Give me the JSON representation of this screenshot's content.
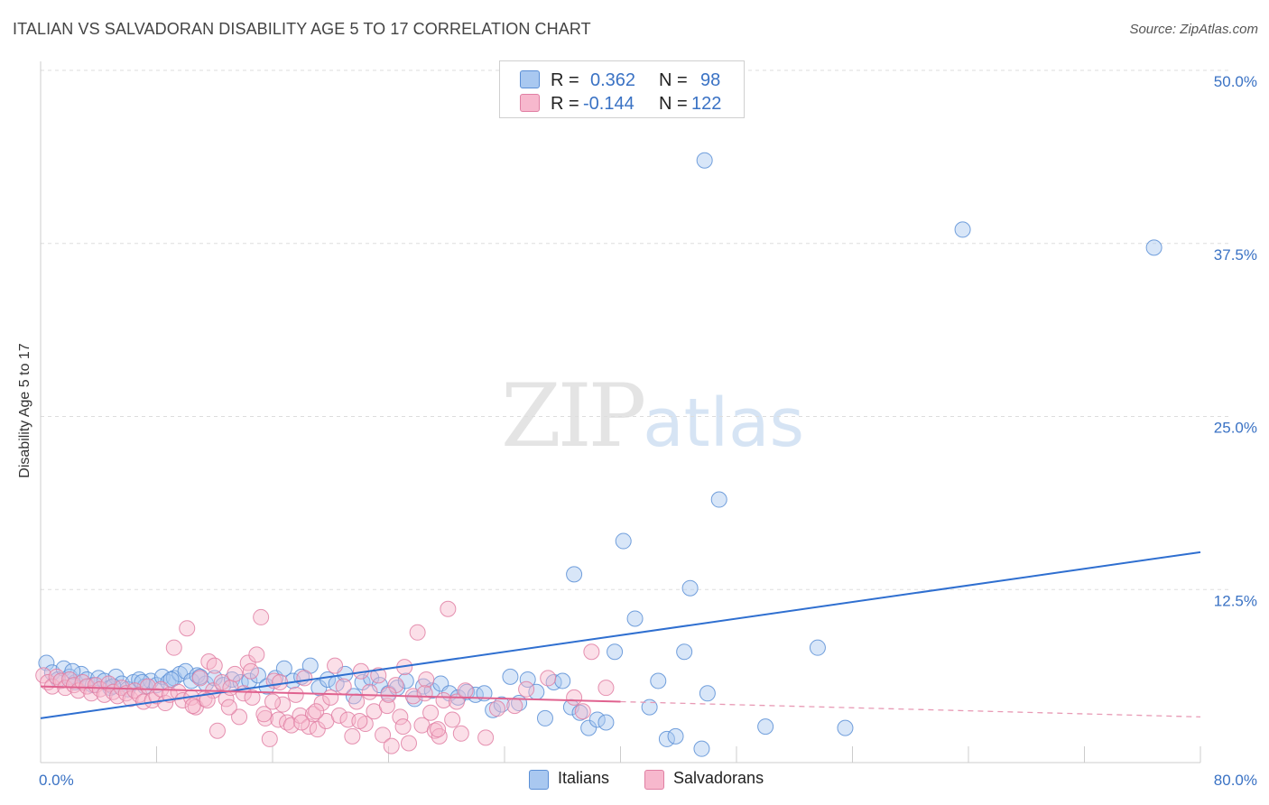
{
  "title": "ITALIAN VS SALVADORAN DISABILITY AGE 5 TO 17 CORRELATION CHART",
  "source": "Source: ZipAtlas.com",
  "watermark": {
    "zip": "ZIP",
    "atlas": "atlas"
  },
  "legend": {
    "rows": [
      {
        "r_label": "R =",
        "r_value": "0.362",
        "n_label": "N =",
        "n_value": "98",
        "color": "#a9c8f0",
        "border": "#5b8fd6"
      },
      {
        "r_label": "R =",
        "r_value": "-0.144",
        "n_label": "N =",
        "n_value": "122",
        "color": "#f7b8cd",
        "border": "#e07fa3"
      }
    ]
  },
  "bottom_legend": [
    {
      "label": "Italians",
      "color": "#a9c8f0",
      "border": "#5b8fd6"
    },
    {
      "label": "Salvadorans",
      "color": "#f7b8cd",
      "border": "#e07fa3"
    }
  ],
  "chart_data": {
    "type": "scatter",
    "title": "ITALIAN VS SALVADORAN DISABILITY AGE 5 TO 17 CORRELATION CHART",
    "xlabel": "",
    "ylabel": "Disability Age 5 to 17",
    "xlim": [
      0,
      80
    ],
    "ylim": [
      0,
      50
    ],
    "x_tick_labels": [
      {
        "value": 0,
        "label": "0.0%"
      },
      {
        "value": 80,
        "label": "80.0%"
      }
    ],
    "y_tick_labels": [
      {
        "value": 12.5,
        "label": "12.5%"
      },
      {
        "value": 25,
        "label": "25.0%"
      },
      {
        "value": 37.5,
        "label": "37.5%"
      },
      {
        "value": 50,
        "label": "50.0%"
      }
    ],
    "grid": true,
    "legend_placement": "top-center",
    "series": [
      {
        "name": "Italians",
        "color": "#5b8fd6",
        "fill": "#a9c8f0",
        "trend": {
          "x": [
            0,
            80
          ],
          "y": [
            3.2,
            15.2
          ]
        },
        "points": [
          [
            0.4,
            7.2
          ],
          [
            0.8,
            6.5
          ],
          [
            1.2,
            6.0
          ],
          [
            1.6,
            6.8
          ],
          [
            2.0,
            6.2
          ],
          [
            2.4,
            5.8
          ],
          [
            2.8,
            6.4
          ],
          [
            3.2,
            6.0
          ],
          [
            3.6,
            5.6
          ],
          [
            4.0,
            6.1
          ],
          [
            4.4,
            5.9
          ],
          [
            4.8,
            5.4
          ],
          [
            5.2,
            6.2
          ],
          [
            5.6,
            5.7
          ],
          [
            6.0,
            5.3
          ],
          [
            6.4,
            5.8
          ],
          [
            6.8,
            6.0
          ],
          [
            7.2,
            5.5
          ],
          [
            7.6,
            5.9
          ],
          [
            8.0,
            5.6
          ],
          [
            8.4,
            6.2
          ],
          [
            8.8,
            5.8
          ],
          [
            9.2,
            6.1
          ],
          [
            9.6,
            6.4
          ],
          [
            10.0,
            6.6
          ],
          [
            10.4,
            5.9
          ],
          [
            10.8,
            6.3
          ],
          [
            11.4,
            5.7
          ],
          [
            12.0,
            6.1
          ],
          [
            12.6,
            5.6
          ],
          [
            13.2,
            6.0
          ],
          [
            13.8,
            5.8
          ],
          [
            14.4,
            5.9
          ],
          [
            15.0,
            6.3
          ],
          [
            15.6,
            5.5
          ],
          [
            16.2,
            6.1
          ],
          [
            16.8,
            6.8
          ],
          [
            17.4,
            5.9
          ],
          [
            18.0,
            6.2
          ],
          [
            18.6,
            7.0
          ],
          [
            19.2,
            5.4
          ],
          [
            19.8,
            6.0
          ],
          [
            20.4,
            5.7
          ],
          [
            21.0,
            6.4
          ],
          [
            21.6,
            4.8
          ],
          [
            22.2,
            5.8
          ],
          [
            22.8,
            6.1
          ],
          [
            23.4,
            5.6
          ],
          [
            24.0,
            5.0
          ],
          [
            24.6,
            5.4
          ],
          [
            25.2,
            5.9
          ],
          [
            25.8,
            4.6
          ],
          [
            26.4,
            5.5
          ],
          [
            27.0,
            5.2
          ],
          [
            27.6,
            5.7
          ],
          [
            28.2,
            5.0
          ],
          [
            28.8,
            4.7
          ],
          [
            29.4,
            5.1
          ],
          [
            30.0,
            4.9
          ],
          [
            30.6,
            5.0
          ],
          [
            31.2,
            3.8
          ],
          [
            31.8,
            4.2
          ],
          [
            32.4,
            6.2
          ],
          [
            33.0,
            4.3
          ],
          [
            33.6,
            6.0
          ],
          [
            34.2,
            5.1
          ],
          [
            34.8,
            3.2
          ],
          [
            35.4,
            5.8
          ],
          [
            36.0,
            5.9
          ],
          [
            36.6,
            4.0
          ],
          [
            37.2,
            3.6
          ],
          [
            37.8,
            2.5
          ],
          [
            38.4,
            3.1
          ],
          [
            39.0,
            2.9
          ],
          [
            39.6,
            8.0
          ],
          [
            40.2,
            16.0
          ],
          [
            41.0,
            10.4
          ],
          [
            42.0,
            4.0
          ],
          [
            42.6,
            5.9
          ],
          [
            43.2,
            1.7
          ],
          [
            43.8,
            1.9
          ],
          [
            44.4,
            8.0
          ],
          [
            44.8,
            12.6
          ],
          [
            45.6,
            1.0
          ],
          [
            46.0,
            5.0
          ],
          [
            46.8,
            19.0
          ],
          [
            50.0,
            2.6
          ],
          [
            53.6,
            8.3
          ],
          [
            55.5,
            2.5
          ],
          [
            36.8,
            13.6
          ],
          [
            45.8,
            43.5
          ],
          [
            63.6,
            38.5
          ],
          [
            76.8,
            37.2
          ],
          [
            2.2,
            6.6
          ],
          [
            5.0,
            5.5
          ],
          [
            7.0,
            5.8
          ],
          [
            9.0,
            6.0
          ],
          [
            11.0,
            6.2
          ]
        ]
      },
      {
        "name": "Salvadorans",
        "color": "#e07fa3",
        "fill": "#f7b8cd",
        "trend": {
          "x": [
            0,
            40
          ],
          "y": [
            5.5,
            4.4
          ]
        },
        "trend_ext": {
          "x": [
            40,
            80
          ],
          "y": [
            4.4,
            3.3
          ]
        },
        "points": [
          [
            0.2,
            6.3
          ],
          [
            0.5,
            5.8
          ],
          [
            0.8,
            5.5
          ],
          [
            1.1,
            6.2
          ],
          [
            1.4,
            5.9
          ],
          [
            1.7,
            5.4
          ],
          [
            2.0,
            6.0
          ],
          [
            2.3,
            5.6
          ],
          [
            2.6,
            5.2
          ],
          [
            2.9,
            5.8
          ],
          [
            3.2,
            5.5
          ],
          [
            3.5,
            5.0
          ],
          [
            3.8,
            5.6
          ],
          [
            4.1,
            5.3
          ],
          [
            4.4,
            4.9
          ],
          [
            4.7,
            5.7
          ],
          [
            5.0,
            5.1
          ],
          [
            5.3,
            4.8
          ],
          [
            5.6,
            5.4
          ],
          [
            5.9,
            5.0
          ],
          [
            6.2,
            4.6
          ],
          [
            6.5,
            5.2
          ],
          [
            6.8,
            4.9
          ],
          [
            7.1,
            4.4
          ],
          [
            7.4,
            5.5
          ],
          [
            7.7,
            4.5
          ],
          [
            8.0,
            4.8
          ],
          [
            8.3,
            5.3
          ],
          [
            8.6,
            4.3
          ],
          [
            8.9,
            4.9
          ],
          [
            9.2,
            8.3
          ],
          [
            9.5,
            5.1
          ],
          [
            9.8,
            4.5
          ],
          [
            10.1,
            9.7
          ],
          [
            10.4,
            4.7
          ],
          [
            10.7,
            4.0
          ],
          [
            11.0,
            6.1
          ],
          [
            11.3,
            4.6
          ],
          [
            11.6,
            7.3
          ],
          [
            11.9,
            5.2
          ],
          [
            12.2,
            2.3
          ],
          [
            12.5,
            5.8
          ],
          [
            12.8,
            4.6
          ],
          [
            13.1,
            5.4
          ],
          [
            13.4,
            6.4
          ],
          [
            13.7,
            3.3
          ],
          [
            14.0,
            5.0
          ],
          [
            14.3,
            7.2
          ],
          [
            14.6,
            4.7
          ],
          [
            14.9,
            7.8
          ],
          [
            15.2,
            10.5
          ],
          [
            15.5,
            3.2
          ],
          [
            15.8,
            1.7
          ],
          [
            16.1,
            5.9
          ],
          [
            16.4,
            3.1
          ],
          [
            16.7,
            4.2
          ],
          [
            17.0,
            2.9
          ],
          [
            17.3,
            2.7
          ],
          [
            17.6,
            4.9
          ],
          [
            17.9,
            3.4
          ],
          [
            18.2,
            6.1
          ],
          [
            18.5,
            2.6
          ],
          [
            18.8,
            3.5
          ],
          [
            19.1,
            2.4
          ],
          [
            19.4,
            4.3
          ],
          [
            19.7,
            3.0
          ],
          [
            20.0,
            4.7
          ],
          [
            20.3,
            7.0
          ],
          [
            20.6,
            3.4
          ],
          [
            20.9,
            5.5
          ],
          [
            21.2,
            3.1
          ],
          [
            21.5,
            1.9
          ],
          [
            21.8,
            4.4
          ],
          [
            22.1,
            6.6
          ],
          [
            22.4,
            2.8
          ],
          [
            22.7,
            5.1
          ],
          [
            23.0,
            3.7
          ],
          [
            23.3,
            6.3
          ],
          [
            23.6,
            2.0
          ],
          [
            23.9,
            4.1
          ],
          [
            24.2,
            1.2
          ],
          [
            24.5,
            5.6
          ],
          [
            24.8,
            3.3
          ],
          [
            25.1,
            6.9
          ],
          [
            25.4,
            1.4
          ],
          [
            25.7,
            4.8
          ],
          [
            26.0,
            9.4
          ],
          [
            26.3,
            2.7
          ],
          [
            26.6,
            6.0
          ],
          [
            26.9,
            3.6
          ],
          [
            27.2,
            2.3
          ],
          [
            27.5,
            1.9
          ],
          [
            27.8,
            4.5
          ],
          [
            28.1,
            11.1
          ],
          [
            28.4,
            3.1
          ],
          [
            28.7,
            4.4
          ],
          [
            29.0,
            2.1
          ],
          [
            29.3,
            5.2
          ],
          [
            30.7,
            1.8
          ],
          [
            31.5,
            3.9
          ],
          [
            32.7,
            4.1
          ],
          [
            33.5,
            5.3
          ],
          [
            35.0,
            6.1
          ],
          [
            36.8,
            4.7
          ],
          [
            37.4,
            3.7
          ],
          [
            38.0,
            8.0
          ],
          [
            39.0,
            5.4
          ],
          [
            12.0,
            7.0
          ],
          [
            13.0,
            4.0
          ],
          [
            15.4,
            3.5
          ],
          [
            16.0,
            4.4
          ],
          [
            18.0,
            2.9
          ],
          [
            19.0,
            3.7
          ],
          [
            22.0,
            3.0
          ],
          [
            24.0,
            4.9
          ],
          [
            25.0,
            2.6
          ],
          [
            26.5,
            5.0
          ],
          [
            27.4,
            2.4
          ],
          [
            10.5,
            4.1
          ],
          [
            11.5,
            4.5
          ],
          [
            14.5,
            6.6
          ],
          [
            16.5,
            5.8
          ]
        ]
      }
    ]
  }
}
